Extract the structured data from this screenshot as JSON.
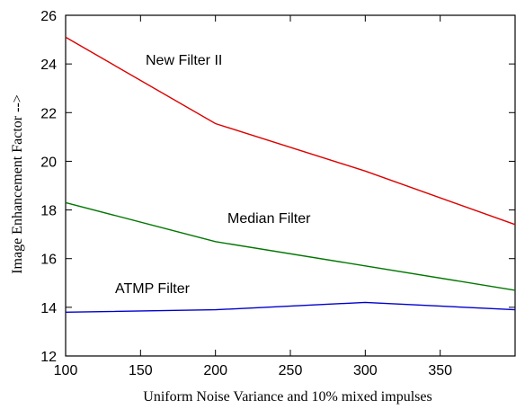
{
  "chart_data": {
    "type": "line",
    "xlabel": "Uniform Noise Variance and 10% mixed impulses",
    "ylabel": "Image Enhancement Factor -->",
    "xlim": [
      100,
      400
    ],
    "ylim": [
      12,
      26
    ],
    "xticks": [
      "100",
      "150",
      "200",
      "250",
      "300",
      "350"
    ],
    "yticks": [
      "12",
      "14",
      "16",
      "18",
      "20",
      "22",
      "24",
      "26"
    ],
    "grid": false,
    "x": [
      100,
      200,
      300,
      400
    ],
    "series": [
      {
        "name": "New Filter II",
        "color": "#dd0000",
        "values": [
          25.1,
          21.55,
          19.6,
          17.4
        ]
      },
      {
        "name": "Median Filter",
        "color": "#007700",
        "values": [
          18.3,
          16.7,
          15.7,
          14.7
        ]
      },
      {
        "name": "ATMP Filter",
        "color": "#0000cc",
        "values": [
          13.8,
          13.9,
          14.2,
          13.9
        ]
      }
    ]
  }
}
